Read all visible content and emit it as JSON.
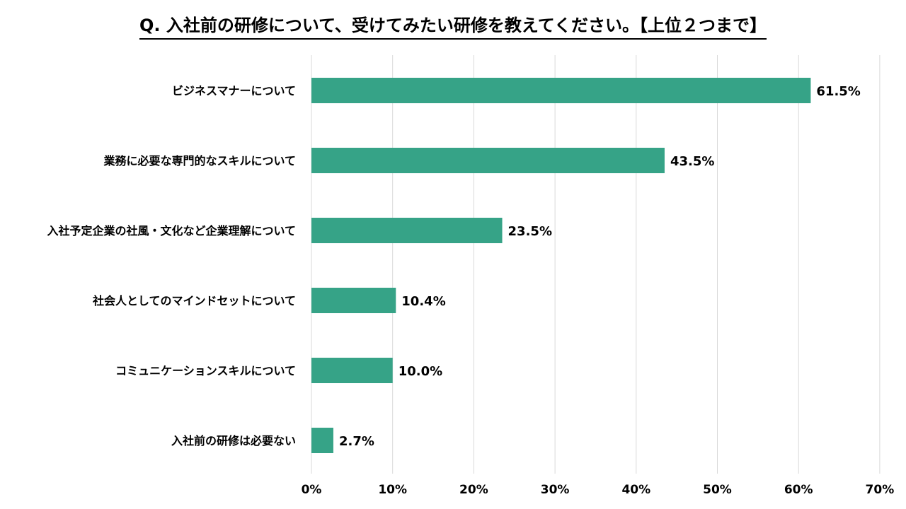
{
  "chart_data": {
    "type": "bar",
    "orientation": "horizontal",
    "title": "Q. 入社前の研修について、受けてみたい研修を教えてください。【上位２つまで】",
    "categories": [
      "ビジネスマナーについて",
      "業務に必要な専門的なスキルについて",
      "入社予定企業の社風・文化など企業理解について",
      "社会人としてのマインドセットについて",
      "コミュニケーションスキルについて",
      "入社前の研修は必要ない"
    ],
    "values": [
      61.5,
      43.5,
      23.5,
      10.4,
      10.0,
      2.7
    ],
    "value_labels": [
      "61.5%",
      "43.5%",
      "23.5%",
      "10.4%",
      "10.0%",
      "2.7%"
    ],
    "xlim": [
      0,
      70
    ],
    "x_ticks": [
      0,
      10,
      20,
      30,
      40,
      50,
      60,
      70
    ],
    "x_tick_labels": [
      "0%",
      "10%",
      "20%",
      "30%",
      "40%",
      "50%",
      "60%",
      "70%"
    ],
    "grid": "vertical",
    "bar_color": "#36A387",
    "grid_color": "#D9D9D9"
  }
}
